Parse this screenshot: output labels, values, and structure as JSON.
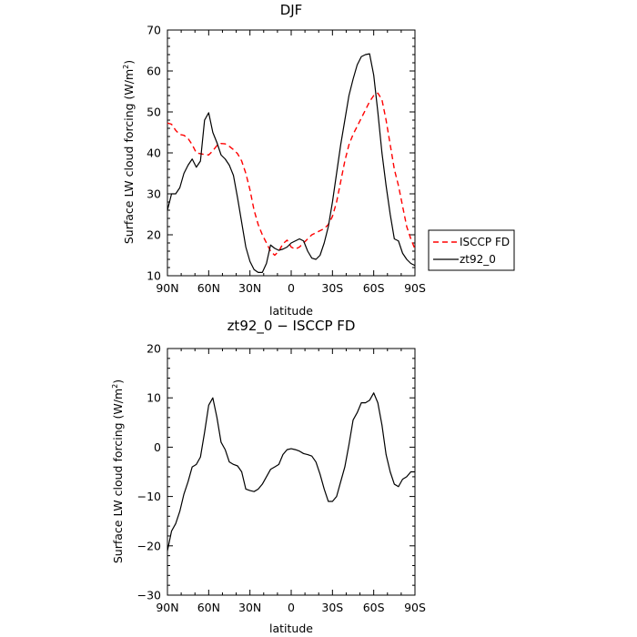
{
  "chart_data": [
    {
      "type": "line",
      "title": "DJF",
      "xlabel": "latitude",
      "ylabel": "Surface LW cloud forcing (W/m²)",
      "ylabel_main": "Surface LW cloud forcing (W/m",
      "ylabel_sup": "2",
      "ylabel_end": ")",
      "xlim": [
        90,
        -90
      ],
      "ylim": [
        10,
        70
      ],
      "xticks": [
        90,
        60,
        30,
        0,
        -30,
        -60,
        -90
      ],
      "xtick_labels": [
        "90N",
        "60N",
        "30N",
        "0",
        "30S",
        "60S",
        "90S"
      ],
      "yticks": [
        10,
        20,
        30,
        40,
        50,
        60,
        70
      ],
      "ytick_labels": [
        "10",
        "20",
        "30",
        "40",
        "50",
        "60",
        "70"
      ],
      "legend_position": "outside right",
      "series": [
        {
          "name": "ISCCP FD",
          "color": "#ff0000",
          "dash": "dashed",
          "x": [
            90,
            87,
            84,
            81,
            78,
            75,
            72,
            69,
            66,
            63,
            60,
            57,
            54,
            51,
            48,
            45,
            42,
            39,
            36,
            33,
            30,
            27,
            24,
            21,
            18,
            15,
            12,
            9,
            6,
            3,
            0,
            -3,
            -6,
            -9,
            -12,
            -15,
            -18,
            -21,
            -24,
            -27,
            -30,
            -33,
            -36,
            -39,
            -42,
            -45,
            -48,
            -51,
            -54,
            -57,
            -60,
            -63,
            -66,
            -69,
            -72,
            -75,
            -78,
            -81,
            -84,
            -87,
            -90
          ],
          "y": [
            47.3,
            47,
            45.5,
            44.5,
            44.3,
            43.5,
            42,
            40,
            39.8,
            39.6,
            39.5,
            40.5,
            41.8,
            42.3,
            42.2,
            41.6,
            40.8,
            39.8,
            38,
            35,
            31,
            26,
            22.5,
            20,
            18,
            16,
            15,
            16,
            17.8,
            18.7,
            17,
            16.5,
            17,
            18,
            19,
            20,
            20.5,
            21,
            21.5,
            22.5,
            24.5,
            28,
            33,
            38,
            42,
            44.5,
            46.5,
            48.5,
            50.5,
            52.5,
            54,
            54.6,
            53,
            48,
            42,
            36,
            32,
            27,
            22,
            19,
            16.5
          ]
        },
        {
          "name": "zt92_0",
          "color": "#000000",
          "dash": "solid",
          "x": [
            90,
            87,
            84,
            81,
            78,
            75,
            72,
            69,
            66,
            63,
            60,
            57,
            54,
            51,
            48,
            45,
            42,
            39,
            36,
            33,
            30,
            27,
            24,
            21,
            18,
            15,
            12,
            9,
            6,
            3,
            0,
            -3,
            -6,
            -9,
            -12,
            -15,
            -18,
            -21,
            -24,
            -27,
            -30,
            -33,
            -36,
            -39,
            -42,
            -45,
            -48,
            -51,
            -54,
            -57,
            -60,
            -63,
            -66,
            -69,
            -72,
            -75,
            -78,
            -81,
            -84,
            -87,
            -90
          ],
          "y": [
            26,
            30,
            30,
            31.5,
            35,
            37,
            38.5,
            36.5,
            38,
            48,
            49.8,
            45,
            42.5,
            39.5,
            38.5,
            37,
            34.5,
            29,
            23,
            17,
            13.5,
            11.5,
            10.8,
            10.8,
            13,
            17.5,
            16.7,
            16.2,
            16.5,
            17,
            18,
            18.5,
            19,
            18.5,
            16,
            14.3,
            14,
            15,
            18,
            22,
            28,
            35,
            42,
            48,
            54,
            58,
            61.5,
            63.5,
            64,
            64.2,
            59,
            50,
            40,
            32,
            25,
            19,
            18.5,
            15.5,
            14,
            13,
            12.5
          ]
        }
      ]
    },
    {
      "type": "line",
      "title": "zt92_0 − ISCCP FD",
      "xlabel": "latitude",
      "ylabel": "Surface LW cloud forcing (W/m²)",
      "ylabel_main": "Surface LW cloud forcing (W/m",
      "ylabel_sup": "2",
      "ylabel_end": ")",
      "xlim": [
        90,
        -90
      ],
      "ylim": [
        -30,
        20
      ],
      "xticks": [
        90,
        60,
        30,
        0,
        -30,
        -60,
        -90
      ],
      "xtick_labels": [
        "90N",
        "60N",
        "30N",
        "0",
        "30S",
        "60S",
        "90S"
      ],
      "yticks": [
        -30,
        -20,
        -10,
        0,
        10,
        20
      ],
      "ytick_labels": [
        "−30",
        "−20",
        "−10",
        "0",
        "10",
        "20"
      ],
      "series": [
        {
          "name": "zt92_0 − ISCCP FD",
          "color": "#000000",
          "dash": "solid",
          "x": [
            90,
            87,
            84,
            81,
            78,
            75,
            72,
            69,
            66,
            63,
            60,
            57,
            54,
            51,
            48,
            45,
            42,
            39,
            36,
            33,
            30,
            27,
            24,
            21,
            18,
            15,
            12,
            9,
            6,
            3,
            0,
            -3,
            -6,
            -9,
            -12,
            -15,
            -18,
            -21,
            -24,
            -27,
            -30,
            -33,
            -36,
            -39,
            -42,
            -45,
            -48,
            -51,
            -54,
            -57,
            -60,
            -63,
            -66,
            -69,
            -72,
            -75,
            -78,
            -81,
            -84,
            -87,
            -90
          ],
          "y": [
            -21,
            -17,
            -15.5,
            -13,
            -9.5,
            -7,
            -4,
            -3.5,
            -2,
            3,
            8.5,
            10,
            6,
            1,
            -0.5,
            -3,
            -3.5,
            -3.8,
            -5,
            -8.5,
            -8.8,
            -9,
            -8.5,
            -7.5,
            -6,
            -4.5,
            -4,
            -3.5,
            -1.5,
            -0.5,
            -0.3,
            -0.5,
            -0.8,
            -1.3,
            -1.5,
            -1.8,
            -3,
            -5.5,
            -8.5,
            -11,
            -11,
            -10,
            -7,
            -4,
            0.5,
            5.5,
            7,
            9,
            9,
            9.5,
            11,
            9,
            4.5,
            -1.5,
            -5,
            -7.5,
            -8,
            -6.5,
            -6,
            -5,
            -5
          ]
        }
      ]
    }
  ]
}
